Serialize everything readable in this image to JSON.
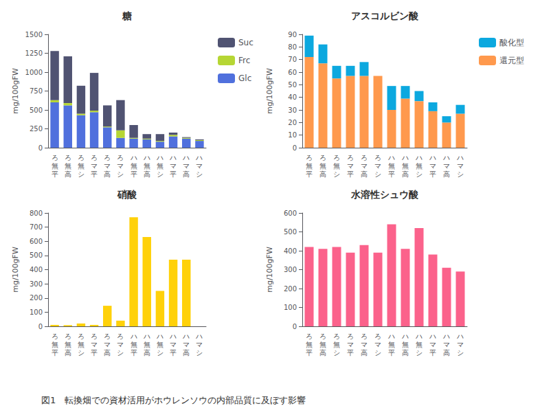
{
  "chart_data": [
    {
      "type": "bar",
      "title": "糖",
      "ylabel": "mg/100gFW",
      "stacked": true,
      "grid": false,
      "legend": "right",
      "categories": [
        "ろ\n無\n平",
        "ろ\n無\n高",
        "ろ\n無\nシ",
        "ろ\nマ\n平",
        "ろ\nマ\n高",
        "ろ\nマ\nシ",
        "ハ\n無\n平",
        "ハ\n無\n高",
        "ハ\n無\nシ",
        "ハ\nマ\n平",
        "ハ\nマ\n高",
        "ハ\nマ\nシ"
      ],
      "series": [
        {
          "name": "Glc",
          "values": [
            600,
            560,
            430,
            470,
            270,
            130,
            120,
            110,
            80,
            150,
            120,
            90
          ]
        },
        {
          "name": "Frc",
          "values": [
            30,
            30,
            20,
            20,
            10,
            100,
            10,
            10,
            10,
            20,
            10,
            10
          ]
        },
        {
          "name": "Suc",
          "values": [
            650,
            620,
            370,
            500,
            280,
            400,
            170,
            60,
            90,
            30,
            10,
            10
          ]
        }
      ],
      "ylim": [
        0,
        1500
      ],
      "yticks": [
        0,
        250,
        500,
        750,
        1000,
        1250,
        1500
      ]
    },
    {
      "type": "bar",
      "title": "アスコルビン酸",
      "ylabel": "mg/100gFW",
      "stacked": true,
      "grid": false,
      "legend": "right",
      "categories": [
        "ろ\n無\n平",
        "ろ\n無\n高",
        "ろ\n無\nシ",
        "ろ\nマ\n平",
        "ろ\nマ\n高",
        "ろ\nマ\nシ",
        "ハ\n無\n平",
        "ハ\n無\n高",
        "ハ\n無\nシ",
        "ハ\nマ\n平",
        "ハ\nマ\n高",
        "ハ\nマ\nシ"
      ],
      "series": [
        {
          "name": "還元型",
          "values": [
            72,
            67,
            55,
            57,
            57,
            57,
            30,
            39,
            37,
            29,
            20,
            27
          ]
        },
        {
          "name": "酸化型",
          "values": [
            17,
            15,
            10,
            8,
            11,
            0,
            19,
            10,
            8,
            7,
            5,
            7
          ]
        }
      ],
      "ylim": [
        0,
        90
      ],
      "yticks": [
        0,
        10,
        20,
        30,
        40,
        50,
        60,
        70,
        80,
        90
      ]
    },
    {
      "type": "bar",
      "title": "硝酸",
      "ylabel": "mg/100gFW",
      "grid": false,
      "categories": [
        "ろ\n無\n平",
        "ろ\n無\n高",
        "ろ\n無\nシ",
        "ろ\nマ\n平",
        "ろ\nマ\n高",
        "ろ\nマ\nシ",
        "ハ\n無\n平",
        "ハ\n無\n高",
        "ハ\n無\nシ",
        "ハ\nマ\n平",
        "ハ\nマ\n高",
        "ハ\nマ\nシ"
      ],
      "values": [
        10,
        8,
        20,
        10,
        145,
        40,
        770,
        630,
        250,
        470,
        470,
        0
      ],
      "ylim": [
        0,
        800
      ],
      "yticks": [
        0,
        100,
        200,
        300,
        400,
        500,
        600,
        700,
        800
      ]
    },
    {
      "type": "bar",
      "title": "水溶性シュウ酸",
      "ylabel": "mg/100gFW",
      "grid": false,
      "categories": [
        "ろ\n無\n平",
        "ろ\n無\n高",
        "ろ\n無\nシ",
        "ろ\nマ\n平",
        "ろ\nマ\n高",
        "ろ\nマ\nシ",
        "ハ\n無\n平",
        "ハ\n無\n高",
        "ハ\n無\nシ",
        "ハ\nマ\n平",
        "ハ\nマ\n高",
        "ハ\nマ\nシ"
      ],
      "values": [
        420,
        410,
        420,
        390,
        430,
        390,
        540,
        410,
        520,
        380,
        310,
        290
      ],
      "ylim": [
        0,
        600
      ],
      "yticks": [
        0,
        100,
        200,
        300,
        400,
        500,
        600
      ]
    }
  ],
  "caption": "図1　転換畑での資材活用がホウレンソウの内部品質に及ぼす影響"
}
